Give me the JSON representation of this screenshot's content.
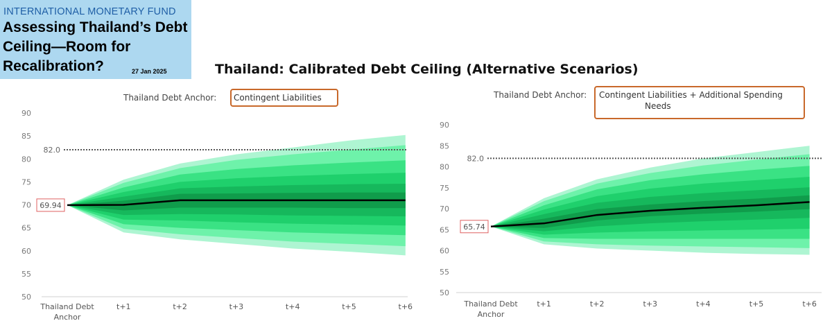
{
  "header": {
    "org": "INTERNATIONAL MONETARY FUND",
    "title": "Assessing Thailand’s Debt Ceiling—Room for Recalibration?",
    "date": "27 Jan 2025"
  },
  "main_title": "Thailand: Calibrated Debt Ceiling (Alternative Scenarios)",
  "colors": {
    "fan_bands": [
      "#aef5d2",
      "#6ef2aa",
      "#3ae284",
      "#1fd06c",
      "#16b85c",
      "#109c4b"
    ],
    "median_line": "#000000",
    "ceiling_line": "#555555",
    "anchor_box": "#e06060",
    "scenario_box": "#c8682a"
  },
  "chart_data": [
    {
      "type": "area",
      "title_prefix": "Thailand Debt Anchor: ",
      "title_highlight": "Contingent Liabilities",
      "categories": [
        "Thailand Debt Anchor",
        "t+1",
        "t+2",
        "t+3",
        "t+4",
        "t+5",
        "t+6"
      ],
      "ylim": [
        50,
        90
      ],
      "yticks": [
        50,
        55,
        60,
        65,
        70,
        75,
        80,
        85,
        90
      ],
      "ceiling_value": 82.0,
      "ceiling_label": "82.0",
      "anchor_value": 69.94,
      "anchor_label": "69.94",
      "median": [
        69.94,
        70.0,
        71.0,
        71.0,
        71.0,
        71.0,
        71.0
      ],
      "bands": [
        {
          "lower": [
            69.94,
            64.0,
            62.5,
            61.5,
            60.5,
            59.8,
            59.0
          ],
          "upper": [
            69.94,
            75.5,
            79.0,
            81.0,
            82.5,
            84.0,
            85.2
          ]
        },
        {
          "lower": [
            69.94,
            64.8,
            63.6,
            62.8,
            62.0,
            61.5,
            61.0
          ],
          "upper": [
            69.94,
            74.8,
            78.0,
            79.8,
            81.0,
            82.0,
            83.0
          ]
        },
        {
          "lower": [
            69.94,
            65.8,
            65.0,
            64.5,
            64.0,
            63.7,
            63.4
          ],
          "upper": [
            69.94,
            73.8,
            76.6,
            77.8,
            78.6,
            79.2,
            79.7
          ]
        },
        {
          "lower": [
            69.94,
            66.8,
            66.6,
            66.2,
            65.9,
            65.7,
            65.5
          ],
          "upper": [
            69.94,
            72.8,
            75.0,
            75.8,
            76.3,
            76.7,
            77.0
          ]
        },
        {
          "lower": [
            69.94,
            67.8,
            68.0,
            67.9,
            67.7,
            67.6,
            67.5
          ],
          "upper": [
            69.94,
            71.8,
            73.6,
            74.0,
            74.3,
            74.5,
            74.6
          ]
        },
        {
          "lower": [
            69.94,
            68.8,
            69.4,
            69.4,
            69.4,
            69.3,
            69.3
          ],
          "upper": [
            69.94,
            70.9,
            72.4,
            72.5,
            72.6,
            72.7,
            72.7
          ]
        }
      ]
    },
    {
      "type": "area",
      "title_prefix": "Thailand Debt Anchor: ",
      "title_highlight": "Contingent Liabilities + Additional Spending Needs",
      "title_highlight_line1": "Contingent Liabilities + Additional Spending",
      "title_highlight_line2": "Needs",
      "categories": [
        "Thailand Debt Anchor",
        "t+1",
        "t+2",
        "t+3",
        "t+4",
        "t+5",
        "t+6"
      ],
      "ylim": [
        50,
        90
      ],
      "yticks": [
        50,
        55,
        60,
        65,
        70,
        75,
        80,
        85,
        90
      ],
      "ceiling_value": 82.0,
      "ceiling_label": "82.0",
      "anchor_value": 65.74,
      "anchor_label": "65.74",
      "median": [
        65.74,
        66.5,
        68.5,
        69.5,
        70.2,
        70.8,
        71.6
      ],
      "bands": [
        {
          "lower": [
            65.74,
            61.5,
            60.5,
            60.0,
            59.5,
            59.2,
            59.0
          ],
          "upper": [
            65.74,
            72.5,
            77.0,
            79.8,
            82.0,
            83.5,
            85.0
          ]
        },
        {
          "lower": [
            65.74,
            62.2,
            61.5,
            61.2,
            61.0,
            60.8,
            60.6
          ],
          "upper": [
            65.74,
            71.8,
            76.0,
            78.5,
            80.3,
            81.7,
            83.0
          ]
        },
        {
          "lower": [
            65.74,
            63.0,
            62.8,
            62.8,
            62.8,
            62.8,
            62.8
          ],
          "upper": [
            65.74,
            70.8,
            74.6,
            76.8,
            78.2,
            79.3,
            80.2
          ]
        },
        {
          "lower": [
            65.74,
            63.8,
            64.3,
            64.6,
            64.8,
            65.0,
            65.2
          ],
          "upper": [
            65.74,
            69.8,
            73.0,
            74.8,
            76.0,
            76.8,
            77.6
          ]
        },
        {
          "lower": [
            65.74,
            64.6,
            65.8,
            66.5,
            67.0,
            67.4,
            67.8
          ],
          "upper": [
            65.74,
            68.7,
            71.4,
            72.8,
            73.7,
            74.4,
            75.1
          ]
        },
        {
          "lower": [
            65.74,
            65.4,
            67.2,
            68.2,
            68.8,
            69.3,
            69.9
          ],
          "upper": [
            65.74,
            67.6,
            69.9,
            71.0,
            71.8,
            72.4,
            73.2
          ]
        }
      ]
    }
  ]
}
